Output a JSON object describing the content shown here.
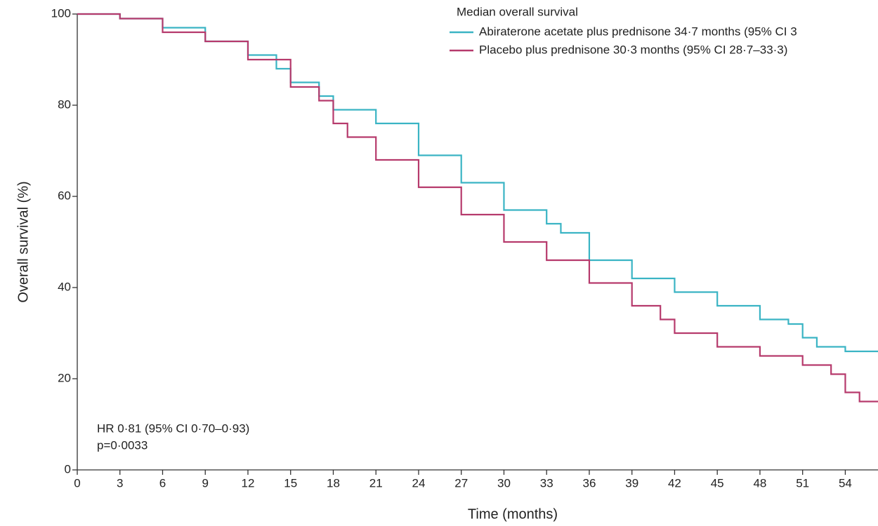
{
  "chart_data": {
    "type": "step",
    "x_label": "Time (months)",
    "y_label": "Overall survival (%)",
    "legend_title": "Median overall survival",
    "annotations": [
      "HR 0·81 (95% CI 0·70–0·93)",
      "p=0·0033"
    ],
    "xlim": [
      0,
      56.3
    ],
    "ylim": [
      0,
      100
    ],
    "xticks": [
      0,
      3,
      6,
      9,
      12,
      15,
      18,
      21,
      24,
      27,
      30,
      33,
      36,
      39,
      42,
      45,
      48,
      51,
      54
    ],
    "yticks": [
      0,
      20,
      40,
      60,
      80,
      100
    ],
    "series": [
      {
        "name": "Abiraterone acetate plus prednisone 34·7 months (95% CI 3",
        "color": "#3ab4c4",
        "x": [
          0,
          3,
          6,
          9,
          12,
          14,
          15,
          17,
          18,
          21,
          24,
          27,
          30,
          33,
          34,
          36,
          39,
          42,
          45,
          48,
          50,
          51,
          52,
          54,
          56.3
        ],
        "values": [
          100,
          99,
          97,
          94,
          91,
          88,
          85,
          82,
          79,
          76,
          69,
          63,
          57,
          54,
          52,
          46,
          42,
          39,
          36,
          33,
          32,
          29,
          27,
          26,
          26
        ]
      },
      {
        "name": "Placebo plus prednisone 30·3 months (95% CI 28·7–33·3)",
        "color": "#b63a6c",
        "x": [
          0,
          3,
          6,
          9,
          12,
          15,
          17,
          18,
          19,
          21,
          24,
          27,
          30,
          33,
          36,
          39,
          41,
          42,
          45,
          48,
          51,
          53,
          54,
          55,
          56.3
        ],
        "values": [
          100,
          99,
          96,
          94,
          90,
          84,
          81,
          76,
          73,
          68,
          62,
          56,
          50,
          46,
          41,
          36,
          33,
          30,
          27,
          25,
          23,
          21,
          17,
          15,
          15
        ]
      }
    ]
  }
}
